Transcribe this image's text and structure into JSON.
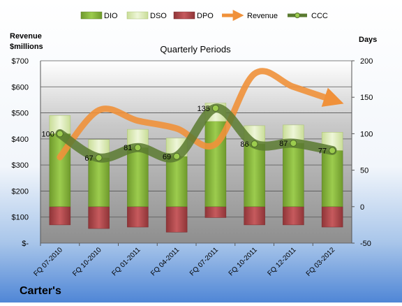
{
  "company": "Carter's",
  "chart_data": {
    "type": "bar",
    "title": "Quarterly Periods",
    "left_axis_label_line1": "Revenue",
    "left_axis_label_line2": "$millions",
    "right_axis_label": "Days",
    "left_ylim": [
      0,
      700
    ],
    "left_ticks": [
      "$-",
      "$100",
      "$200",
      "$300",
      "$400",
      "$500",
      "$600",
      "$700"
    ],
    "right_ylim": [
      -50,
      200
    ],
    "right_ticks": [
      "-50",
      "0",
      "50",
      "100",
      "150",
      "200"
    ],
    "grid": true,
    "legend_position": "top",
    "categories": [
      "FQ 07-2010",
      "FQ 10-2010",
      "FQ 01-2011",
      "FQ 04-2011",
      "FQ 07-2011",
      "FQ 10-2011",
      "FQ 12-2011",
      "FQ 03-2012"
    ],
    "series": [
      {
        "name": "DIO",
        "axis": "right",
        "color": "#8cbf3f",
        "values": [
          100,
          67,
          81,
          69,
          117,
          86,
          87,
          77
        ]
      },
      {
        "name": "DSO",
        "axis": "right",
        "color": "#e2efc0",
        "values": [
          25,
          25,
          25,
          25,
          25,
          25,
          25,
          25
        ]
      },
      {
        "name": "DPO",
        "axis": "right",
        "color": "#b84b4e",
        "values": [
          -25,
          -30,
          -28,
          -35,
          -15,
          -25,
          -25,
          -28
        ]
      },
      {
        "name": "Revenue",
        "axis": "left",
        "color": "#f0913a",
        "values": [
          330,
          510,
          470,
          440,
          380,
          650,
          600,
          550
        ]
      },
      {
        "name": "CCC",
        "axis": "right",
        "color": "#5a7a30",
        "values": [
          100,
          67,
          81,
          69,
          135,
          86,
          87,
          77
        ]
      }
    ],
    "data_labels": [
      "100",
      "67",
      "81",
      "69",
      "135",
      "86",
      "87",
      "77"
    ]
  }
}
